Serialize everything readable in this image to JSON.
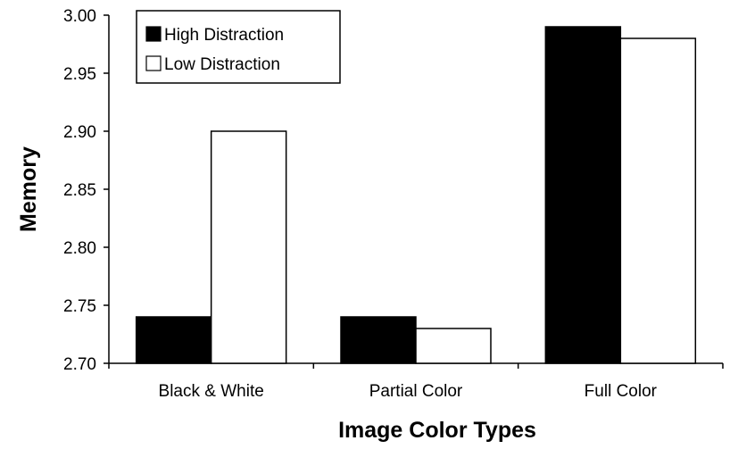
{
  "chart_data": {
    "type": "bar",
    "title": "",
    "xlabel": "Image Color Types",
    "ylabel": "Memory",
    "categories": [
      "Black & White",
      "Partial Color",
      "Full Color"
    ],
    "series": [
      {
        "name": "High Distraction",
        "values": [
          2.74,
          2.74,
          2.99
        ],
        "color": "#000000"
      },
      {
        "name": "Low Distraction",
        "values": [
          2.9,
          2.73,
          2.98
        ],
        "color": "#ffffff"
      }
    ],
    "ylim": [
      2.7,
      3.0
    ],
    "yticks": [
      "2.70",
      "2.75",
      "2.80",
      "2.85",
      "2.90",
      "2.95",
      "3.00"
    ],
    "grid": false,
    "legend_position": "top-left"
  }
}
